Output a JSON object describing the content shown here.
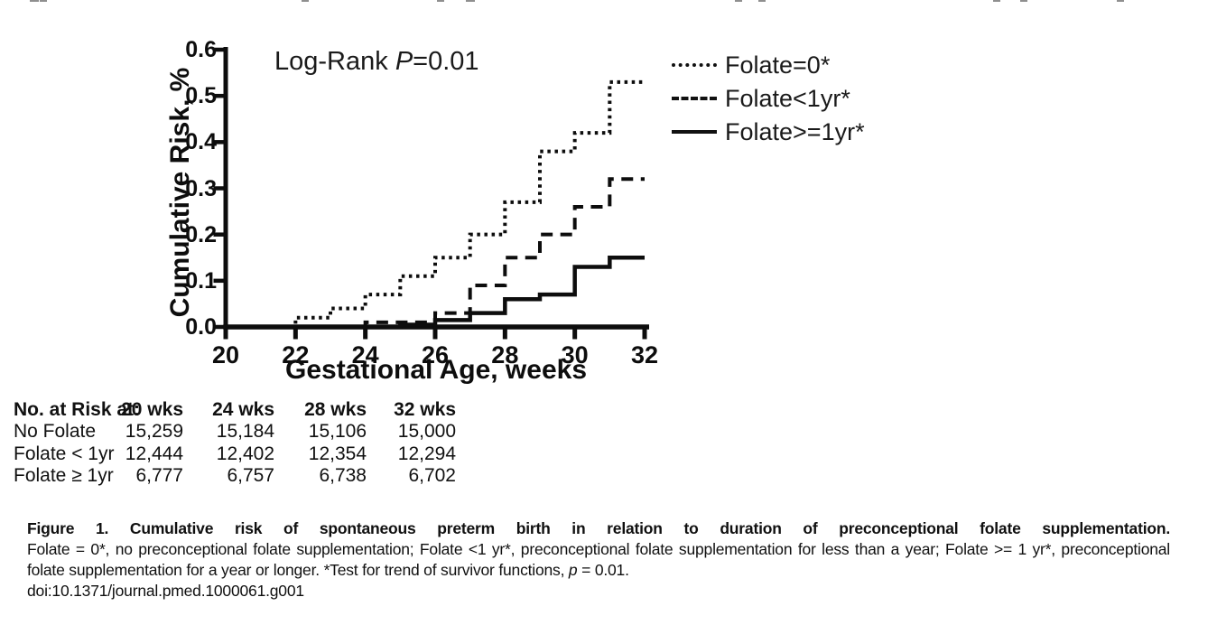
{
  "chart_data": {
    "type": "line",
    "subtype": "step-function-cumulative-incidence",
    "annotation": {
      "prefix": "Log-Rank ",
      "italic": "P",
      "suffix": "=0.01"
    },
    "xlabel": "Gestational Age, weeks",
    "ylabel": "Cumulative Risk, %",
    "xlim": [
      20,
      32
    ],
    "ylim": [
      0.0,
      0.6
    ],
    "x_ticks": [
      20,
      22,
      24,
      26,
      28,
      30,
      32
    ],
    "y_ticks": [
      0.0,
      0.1,
      0.2,
      0.3,
      0.4,
      0.5,
      0.6
    ],
    "y_tick_labels": [
      "0.0",
      "0.1",
      "0.2",
      "0.3",
      "0.4",
      "0.5",
      "0.6"
    ],
    "grid": false,
    "legend_position": "top-right-outside",
    "series": [
      {
        "name": "Folate=0*",
        "style": "dotted",
        "steps": [
          [
            20,
            0
          ],
          [
            22,
            0.02
          ],
          [
            23,
            0.04
          ],
          [
            24,
            0.07
          ],
          [
            25,
            0.11
          ],
          [
            26,
            0.15
          ],
          [
            27,
            0.2
          ],
          [
            28,
            0.27
          ],
          [
            29,
            0.38
          ],
          [
            30,
            0.42
          ],
          [
            31,
            0.53
          ],
          [
            32,
            0.53
          ]
        ]
      },
      {
        "name": "Folate<1yr*",
        "style": "dashed",
        "steps": [
          [
            20,
            0
          ],
          [
            24,
            0.01
          ],
          [
            26,
            0.03
          ],
          [
            27,
            0.09
          ],
          [
            28,
            0.15
          ],
          [
            29,
            0.2
          ],
          [
            30,
            0.26
          ],
          [
            31,
            0.32
          ],
          [
            32,
            0.32
          ]
        ]
      },
      {
        "name": "Folate>=1yr*",
        "style": "solid",
        "steps": [
          [
            20,
            0
          ],
          [
            25,
            0.005
          ],
          [
            26,
            0.015
          ],
          [
            27,
            0.03
          ],
          [
            28,
            0.06
          ],
          [
            29,
            0.07
          ],
          [
            30,
            0.13
          ],
          [
            31,
            0.15
          ],
          [
            32,
            0.15
          ]
        ]
      }
    ]
  },
  "risk_table": {
    "header": [
      "No. at Risk at:",
      "20 wks",
      "24 wks",
      "28 wks",
      "32 wks"
    ],
    "rows": [
      {
        "label": "No Folate",
        "values": [
          "15,259",
          "15,184",
          "15,106",
          "15,000"
        ]
      },
      {
        "label": "Folate < 1yr",
        "values": [
          "12,444",
          "12,402",
          "12,354",
          "12,294"
        ]
      },
      {
        "label": "Folate ≥ 1yr",
        "values": [
          "6,777",
          "6,757",
          "6,738",
          "6,702"
        ]
      }
    ]
  },
  "caption": {
    "title": "Figure 1. Cumulative risk of spontaneous preterm birth in relation to duration of preconceptional folate supplementation.",
    "body_before_p": "Folate = 0*, no preconceptional folate supplementation; Folate <1 yr*, preconceptional folate supplementation for less than a year; Folate >= 1 yr*, preconceptional folate supplementation for a year or longer. *Test for trend of survivor functions, ",
    "p_italic": "p",
    "body_after_p": " = 0.01.",
    "doi": "doi:10.1371/journal.pmed.1000061.g001"
  }
}
